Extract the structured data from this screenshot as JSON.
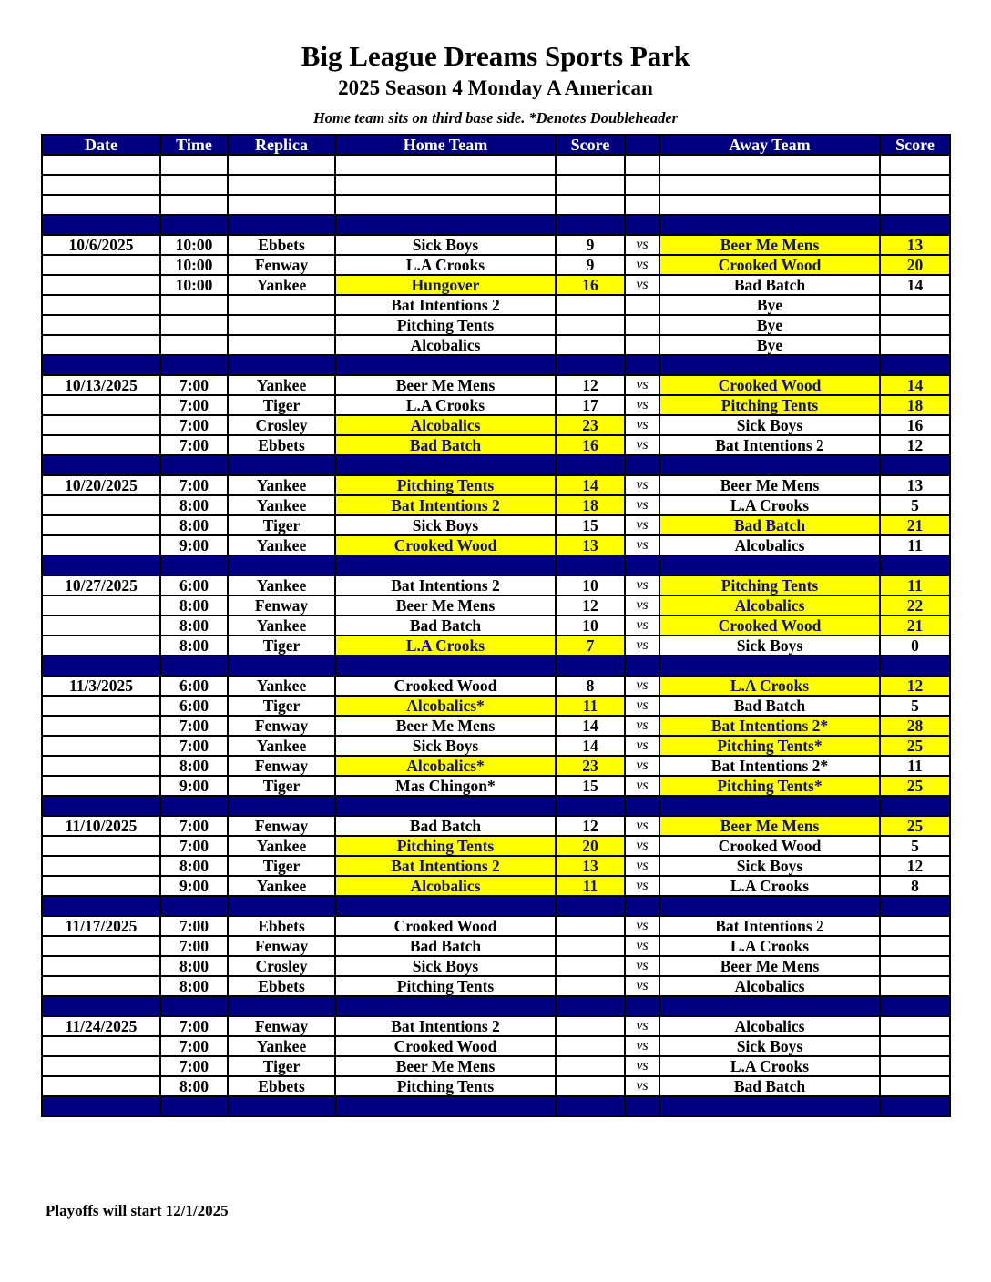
{
  "header": {
    "title": "Big League Dreams Sports Park",
    "subtitle": "2025 Season 4 Monday A American",
    "note": "Home team sits on third base side.  *Denotes Doubleheader"
  },
  "columns": [
    "Date",
    "Time",
    "Replica",
    "Home Team",
    "Score",
    "",
    "Away Team",
    "Score"
  ],
  "colors": {
    "header_bg": "#000080",
    "winner_highlight": "#ffff00"
  },
  "vs_label": "vs",
  "weeks": [
    {
      "date": "10/6/2025",
      "games": [
        {
          "time": "10:00",
          "field": "Ebbets",
          "home": "Sick Boys",
          "home_score": "9",
          "away": "Beer Me Mens",
          "away_score": "13",
          "winner": "away"
        },
        {
          "time": "10:00",
          "field": "Fenway",
          "home": "L.A Crooks",
          "home_score": "9",
          "away": "Crooked Wood",
          "away_score": "20",
          "winner": "away"
        },
        {
          "time": "10:00",
          "field": "Yankee",
          "home": "Hungover",
          "home_score": "16",
          "away": "Bad Batch",
          "away_score": "14",
          "winner": "home"
        },
        {
          "time": "",
          "field": "",
          "home": "Bat Intentions 2",
          "home_score": "",
          "away": "Bye",
          "away_score": "",
          "winner": "",
          "bye": true
        },
        {
          "time": "",
          "field": "",
          "home": "Pitching Tents",
          "home_score": "",
          "away": "Bye",
          "away_score": "",
          "winner": "",
          "bye": true
        },
        {
          "time": "",
          "field": "",
          "home": "Alcobalics",
          "home_score": "",
          "away": "Bye",
          "away_score": "",
          "winner": "",
          "bye": true
        }
      ]
    },
    {
      "date": "10/13/2025",
      "games": [
        {
          "time": "7:00",
          "field": "Yankee",
          "home": "Beer Me Mens",
          "home_score": "12",
          "away": "Crooked Wood",
          "away_score": "14",
          "winner": "away"
        },
        {
          "time": "7:00",
          "field": "Tiger",
          "home": "L.A Crooks",
          "home_score": "17",
          "away": "Pitching Tents",
          "away_score": "18",
          "winner": "away"
        },
        {
          "time": "7:00",
          "field": "Crosley",
          "home": "Alcobalics",
          "home_score": "23",
          "away": "Sick Boys",
          "away_score": "16",
          "winner": "home"
        },
        {
          "time": "7:00",
          "field": "Ebbets",
          "home": "Bad Batch",
          "home_score": "16",
          "away": "Bat Intentions 2",
          "away_score": "12",
          "winner": "home"
        }
      ]
    },
    {
      "date": "10/20/2025",
      "games": [
        {
          "time": "7:00",
          "field": "Yankee",
          "home": "Pitching Tents",
          "home_score": "14",
          "away": "Beer Me Mens",
          "away_score": "13",
          "winner": "home"
        },
        {
          "time": "8:00",
          "field": "Yankee",
          "home": "Bat Intentions 2",
          "home_score": "18",
          "away": "L.A Crooks",
          "away_score": "5",
          "winner": "home"
        },
        {
          "time": "8:00",
          "field": "Tiger",
          "home": "Sick Boys",
          "home_score": "15",
          "away": "Bad Batch",
          "away_score": "21",
          "winner": "away"
        },
        {
          "time": "9:00",
          "field": "Yankee",
          "home": "Crooked Wood",
          "home_score": "13",
          "away": "Alcobalics",
          "away_score": "11",
          "winner": "home"
        }
      ]
    },
    {
      "date": "10/27/2025",
      "games": [
        {
          "time": "6:00",
          "field": "Yankee",
          "home": "Bat Intentions 2",
          "home_score": "10",
          "away": "Pitching Tents",
          "away_score": "11",
          "winner": "away"
        },
        {
          "time": "8:00",
          "field": "Fenway",
          "home": "Beer Me Mens",
          "home_score": "12",
          "away": "Alcobalics",
          "away_score": "22",
          "winner": "away"
        },
        {
          "time": "8:00",
          "field": "Yankee",
          "home": "Bad Batch",
          "home_score": "10",
          "away": "Crooked Wood",
          "away_score": "21",
          "winner": "away"
        },
        {
          "time": "8:00",
          "field": "Tiger",
          "home": "L.A Crooks",
          "home_score": "7",
          "away": "Sick Boys",
          "away_score": "0",
          "winner": "home"
        }
      ]
    },
    {
      "date": "11/3/2025",
      "games": [
        {
          "time": "6:00",
          "field": "Yankee",
          "home": "Crooked Wood",
          "home_score": "8",
          "away": "L.A Crooks",
          "away_score": "12",
          "winner": "away"
        },
        {
          "time": "6:00",
          "field": "Tiger",
          "home": "Alcobalics*",
          "home_score": "11",
          "away": "Bad Batch",
          "away_score": "5",
          "winner": "home"
        },
        {
          "time": "7:00",
          "field": "Fenway",
          "home": "Beer Me Mens",
          "home_score": "14",
          "away": "Bat Intentions 2*",
          "away_score": "28",
          "winner": "away"
        },
        {
          "time": "7:00",
          "field": "Yankee",
          "home": "Sick Boys",
          "home_score": "14",
          "away": "Pitching Tents*",
          "away_score": "25",
          "winner": "away"
        },
        {
          "time": "8:00",
          "field": "Fenway",
          "home": "Alcobalics*",
          "home_score": "23",
          "away": "Bat Intentions 2*",
          "away_score": "11",
          "winner": "home"
        },
        {
          "time": "9:00",
          "field": "Tiger",
          "home": "Mas Chingon*",
          "home_score": "15",
          "away": "Pitching Tents*",
          "away_score": "25",
          "winner": "away"
        }
      ]
    },
    {
      "date": "11/10/2025",
      "games": [
        {
          "time": "7:00",
          "field": "Fenway",
          "home": "Bad Batch",
          "home_score": "12",
          "away": "Beer Me Mens",
          "away_score": "25",
          "winner": "away"
        },
        {
          "time": "7:00",
          "field": "Yankee",
          "home": "Pitching Tents",
          "home_score": "20",
          "away": "Crooked Wood",
          "away_score": "5",
          "winner": "home"
        },
        {
          "time": "8:00",
          "field": "Tiger",
          "home": "Bat Intentions 2",
          "home_score": "13",
          "away": "Sick Boys",
          "away_score": "12",
          "winner": "home"
        },
        {
          "time": "9:00",
          "field": "Yankee",
          "home": "Alcobalics",
          "home_score": "11",
          "away": "L.A Crooks",
          "away_score": "8",
          "winner": "home"
        }
      ]
    },
    {
      "date": "11/17/2025",
      "games": [
        {
          "time": "7:00",
          "field": "Ebbets",
          "home": "Crooked Wood",
          "home_score": "",
          "away": "Bat Intentions 2",
          "away_score": "",
          "winner": ""
        },
        {
          "time": "7:00",
          "field": "Fenway",
          "home": "Bad Batch",
          "home_score": "",
          "away": "L.A Crooks",
          "away_score": "",
          "winner": ""
        },
        {
          "time": "8:00",
          "field": "Crosley",
          "home": "Sick Boys",
          "home_score": "",
          "away": "Beer Me Mens",
          "away_score": "",
          "winner": ""
        },
        {
          "time": "8:00",
          "field": "Ebbets",
          "home": "Pitching Tents",
          "home_score": "",
          "away": "Alcobalics",
          "away_score": "",
          "winner": ""
        }
      ]
    },
    {
      "date": "11/24/2025",
      "games": [
        {
          "time": "7:00",
          "field": "Fenway",
          "home": "Bat Intentions 2",
          "home_score": "",
          "away": "Alcobalics",
          "away_score": "",
          "winner": ""
        },
        {
          "time": "7:00",
          "field": "Yankee",
          "home": "Crooked Wood",
          "home_score": "",
          "away": "Sick Boys",
          "away_score": "",
          "winner": ""
        },
        {
          "time": "7:00",
          "field": "Tiger",
          "home": "Beer Me Mens",
          "home_score": "",
          "away": "L.A Crooks",
          "away_score": "",
          "winner": ""
        },
        {
          "time": "8:00",
          "field": "Ebbets",
          "home": "Pitching Tents",
          "home_score": "",
          "away": "Bad Batch",
          "away_score": "",
          "winner": ""
        }
      ]
    }
  ],
  "footer": "Playoffs will start 12/1/2025"
}
